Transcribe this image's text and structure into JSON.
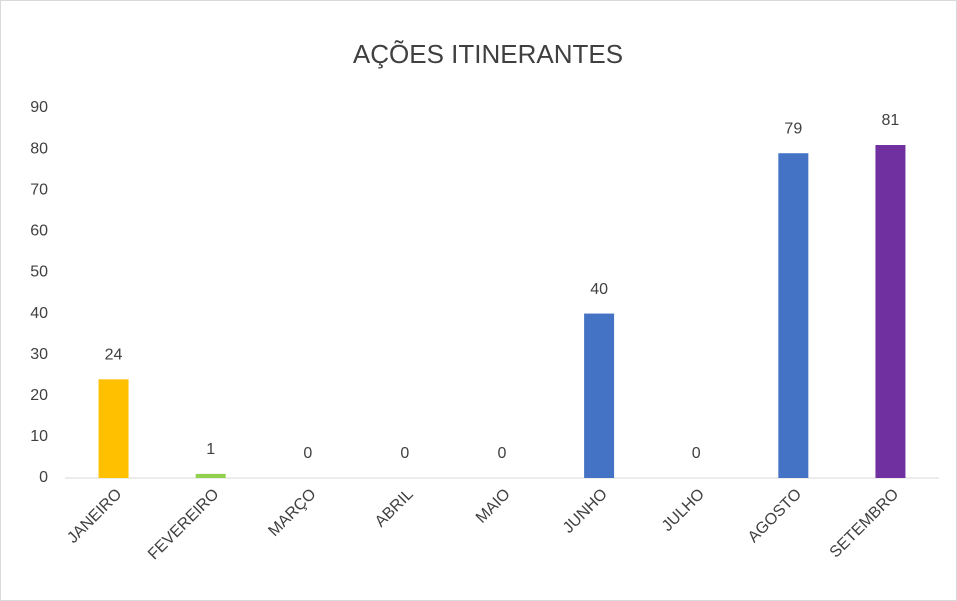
{
  "chart_data": {
    "type": "bar",
    "title": "AÇÕES ITINERANTES",
    "categories": [
      "JANEIRO",
      "FEVEREIRO",
      "MARÇO",
      "ABRIL",
      "MAIO",
      "JUNHO",
      "JULHO",
      "AGOSTO",
      "SETEMBRO"
    ],
    "values": [
      24,
      1,
      0,
      0,
      0,
      40,
      0,
      79,
      81
    ],
    "colors": [
      "#ffc000",
      "#92d050",
      "#4472c4",
      "#4472c4",
      "#4472c4",
      "#4472c4",
      "#4472c4",
      "#4472c4",
      "#7030a0"
    ],
    "ylim": [
      0,
      90
    ],
    "yticks": [
      0,
      10,
      20,
      30,
      40,
      50,
      60,
      70,
      80,
      90
    ],
    "grid": false,
    "data_labels": true
  }
}
